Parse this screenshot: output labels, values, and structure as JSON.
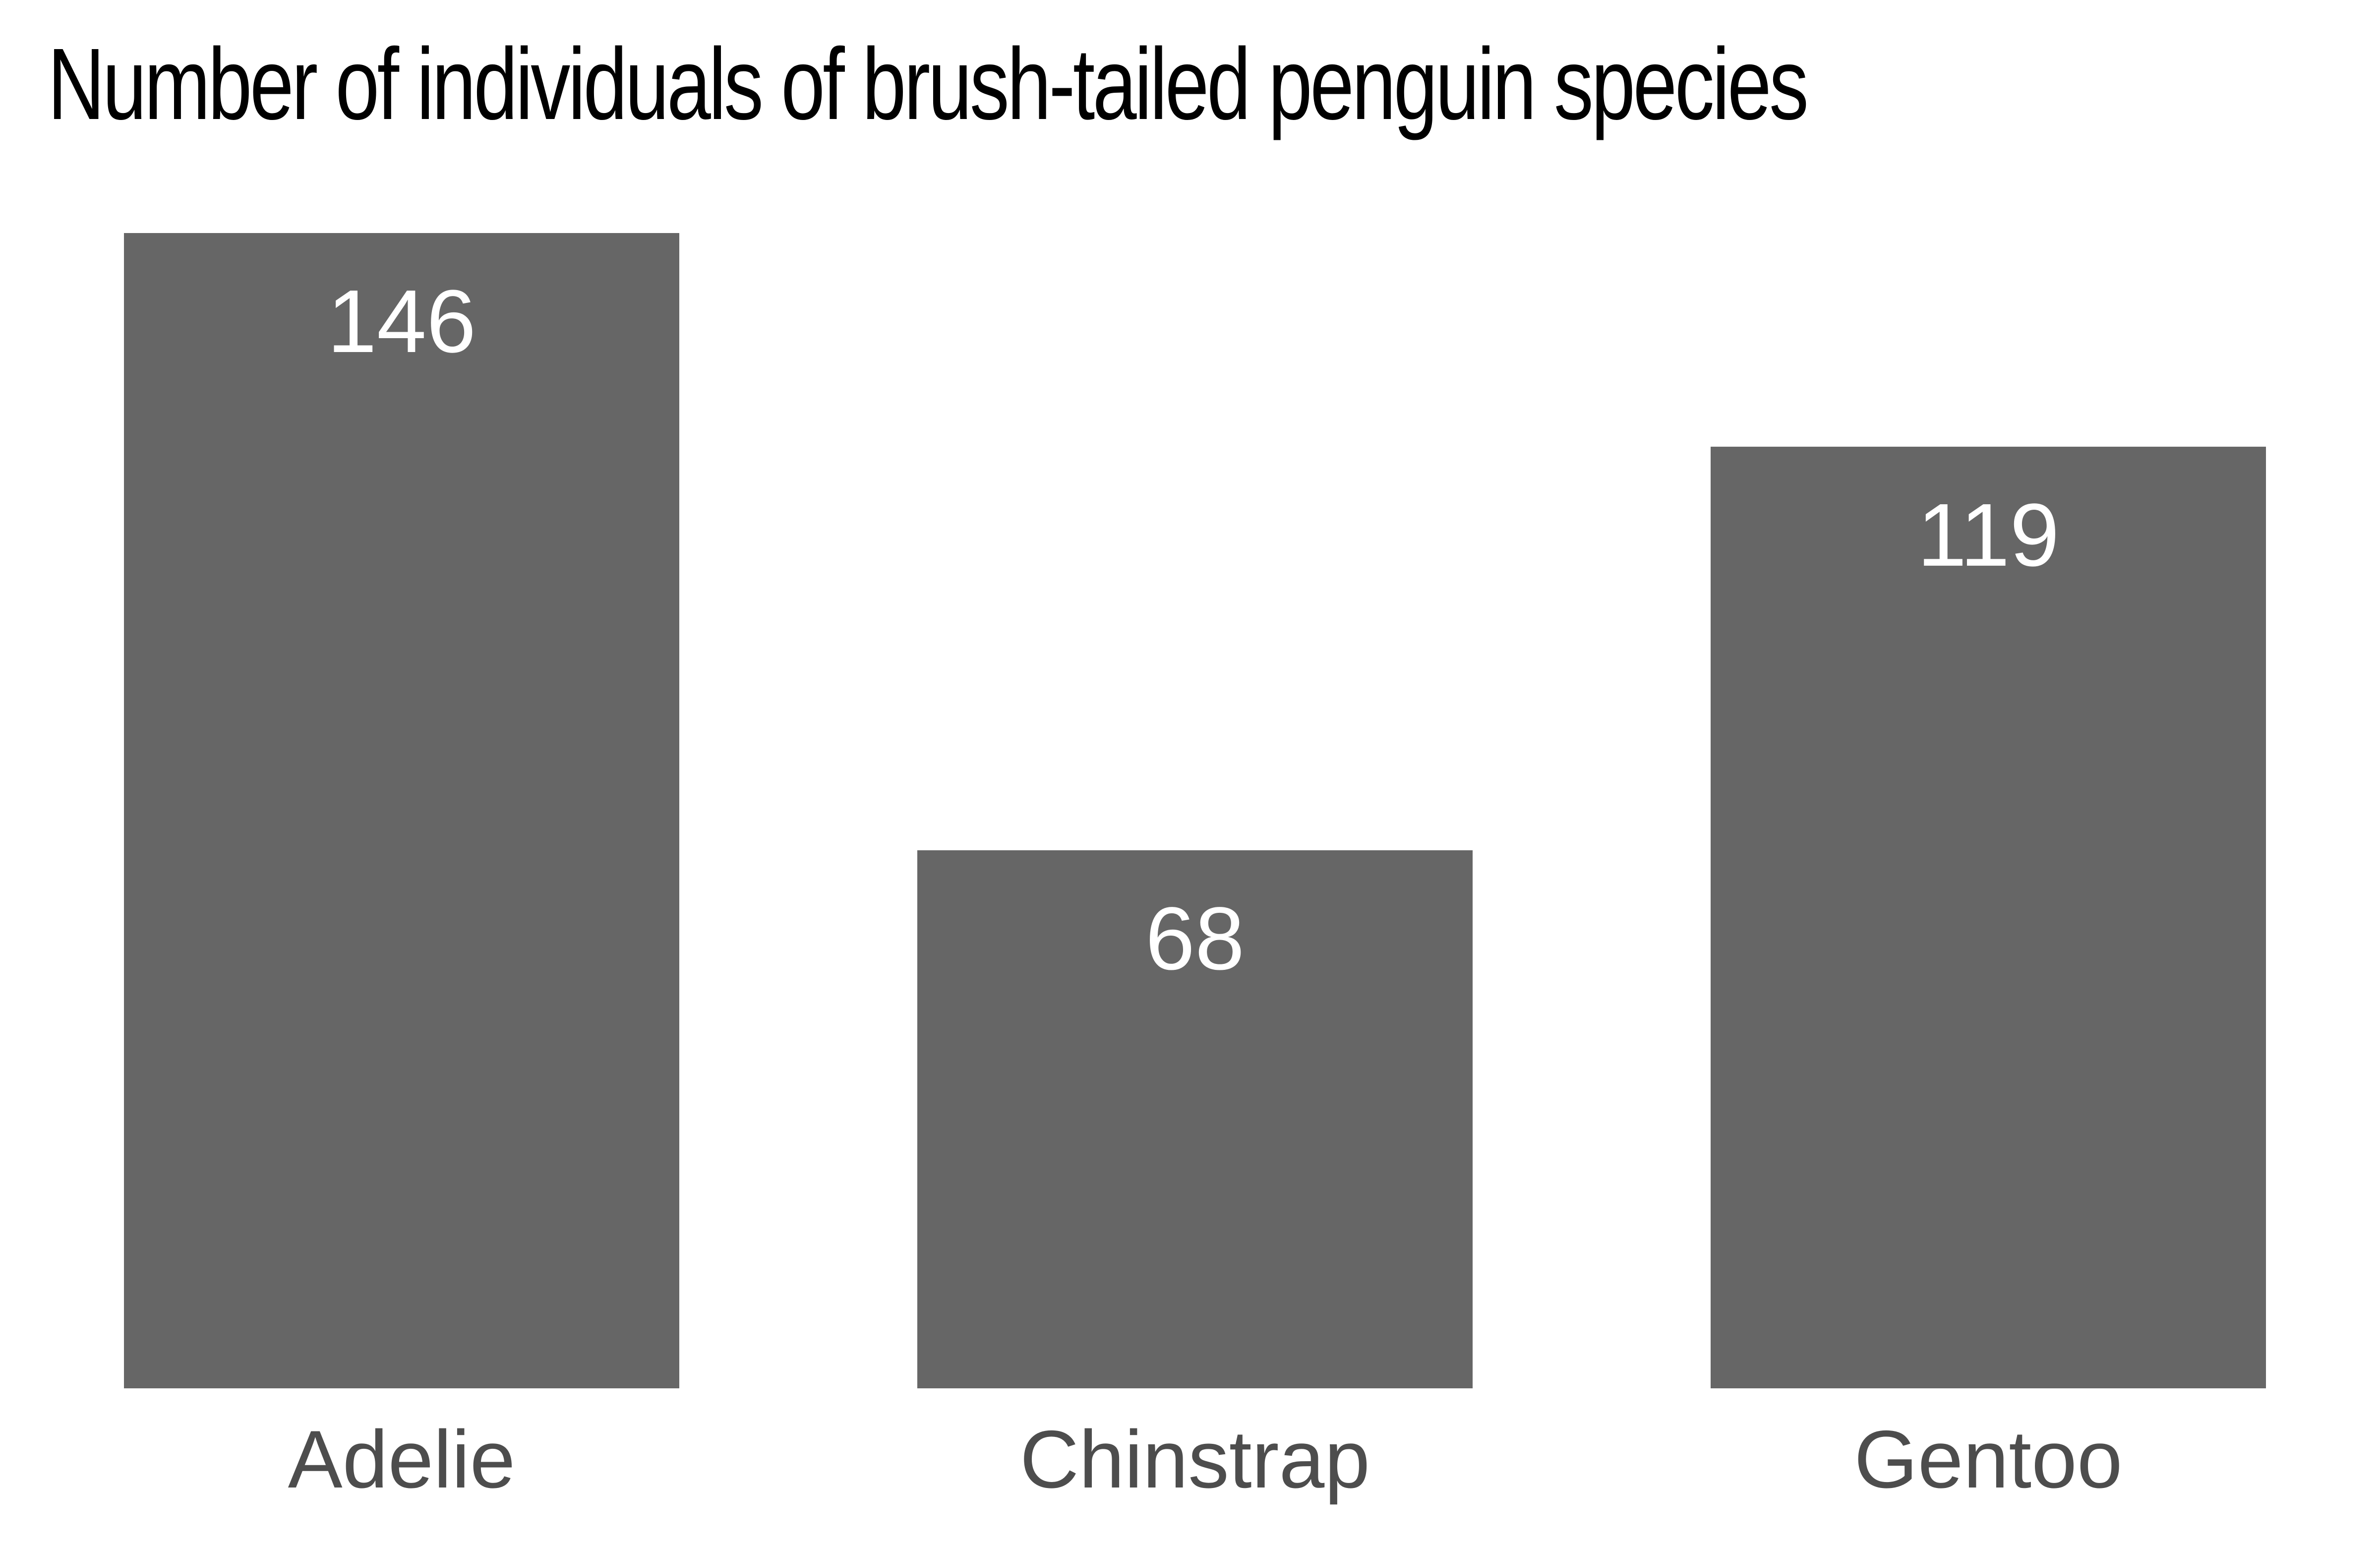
{
  "chart_data": {
    "type": "bar",
    "title": "Number of individuals of brush-tailed penguin species",
    "categories": [
      "Adelie",
      "Chinstrap",
      "Gentoo"
    ],
    "values": [
      146,
      68,
      119
    ],
    "xlabel": "",
    "ylabel": "",
    "ylim": [
      0,
      146
    ],
    "grid": false,
    "legend": "none",
    "bar_color": "#666666",
    "value_label_color": "#ffffff",
    "category_label_color": "#4d4d4d"
  }
}
